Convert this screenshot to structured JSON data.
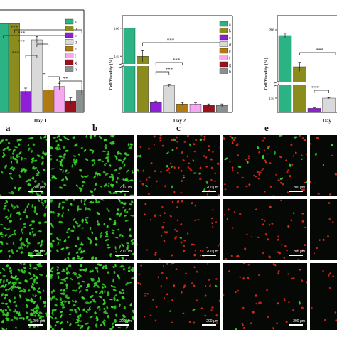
{
  "chart_data": [
    {
      "type": "bar",
      "xlabel": "Day 1",
      "ylabel": "",
      "categories": [
        "a",
        "b",
        "c",
        "d",
        "e",
        "f",
        "g",
        "h"
      ],
      "values": [
        105,
        105,
        63,
        95,
        64,
        66,
        57,
        64
      ],
      "errors": [
        0,
        0,
        2,
        2,
        3,
        2,
        2,
        3
      ],
      "colors": [
        "#2bb383",
        "#8c8c1e",
        "#8e1fd6",
        "#d9d9d9",
        "#b07a12",
        "#f5a8f0",
        "#9e0f1c",
        "#8a8f8f"
      ],
      "ylim": [
        50,
        110
      ],
      "legend": "top-right",
      "significance": [
        "***",
        "***",
        "***",
        "***",
        "*",
        "**"
      ]
    },
    {
      "type": "bar",
      "xlabel": "Day 2",
      "ylabel": "Cell Viability (%)",
      "categories": [
        "a",
        "b",
        "c",
        "d",
        "e",
        "f",
        "g",
        "h"
      ],
      "values": [
        160,
        140,
        107,
        119,
        106,
        106,
        105,
        105
      ],
      "errors": [
        0,
        4,
        1,
        1,
        1,
        1,
        1,
        1
      ],
      "colors": [
        "#2bb383",
        "#8c8c1e",
        "#8e1fd6",
        "#d9d9d9",
        "#b07a12",
        "#f5a8f0",
        "#9e0f1c",
        "#8a8f8f"
      ],
      "ylim": [
        100,
        165
      ],
      "yticks": [
        140,
        160
      ],
      "axis_break": true,
      "legend": "top-right",
      "significance": [
        "***",
        "***",
        "***"
      ]
    },
    {
      "type": "bar",
      "xlabel": "Day",
      "ylabel": "Cell Viability (%)",
      "categories": [
        "a",
        "b",
        "c",
        "d",
        "e"
      ],
      "values": [
        260,
        205,
        132,
        150,
        132
      ],
      "errors": [
        4,
        8,
        1,
        1,
        1
      ],
      "colors": [
        "#2bb383",
        "#8c8c1e",
        "#8e1fd6",
        "#d9d9d9",
        "#b07a12"
      ],
      "ylim": [
        125,
        285
      ],
      "yticks": [
        150,
        270
      ],
      "ytick_labels": [
        "150",
        "270"
      ],
      "top_tick_label": "280",
      "axis_break": true,
      "significance": [
        "***",
        "***"
      ]
    }
  ],
  "panel_letters": [
    "a",
    "b",
    "c",
    "e"
  ],
  "scale_label": "200 μm",
  "micro_colors": {
    "background": "#050805",
    "live": "#38d62a",
    "dead": "#e02a1f"
  }
}
